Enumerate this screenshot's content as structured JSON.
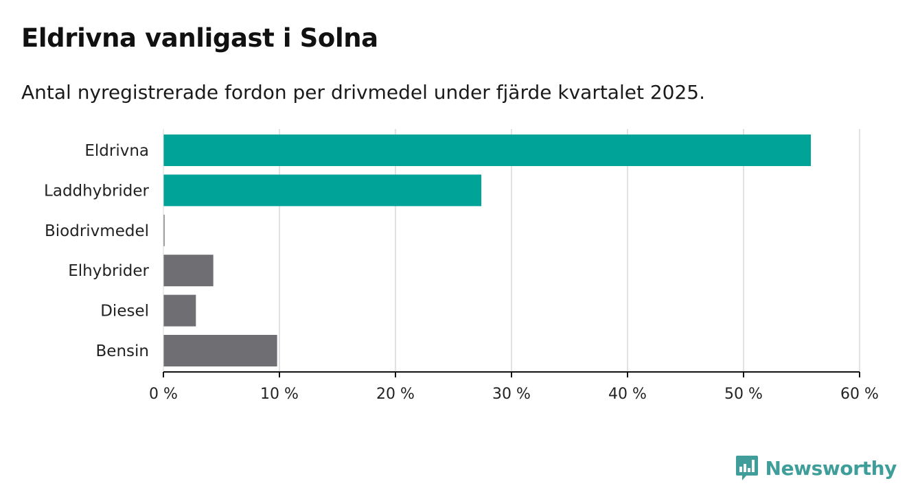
{
  "title": "Eldrivna vanligast i Solna",
  "subtitle": "Antal nyregistrerade fordon per drivmedel under fjärde kvartalet 2025.",
  "brand": {
    "name": "Newsworthy",
    "color": "#3f9e99"
  },
  "colors": {
    "highlight": "#00a398",
    "neutral": "#6f6e73",
    "grid": "#d9d9d9",
    "axis": "#111111"
  },
  "chart_data": {
    "type": "bar",
    "orientation": "horizontal",
    "title": "Eldrivna vanligast i Solna",
    "subtitle": "Antal nyregistrerade fordon per drivmedel under fjärde kvartalet 2025.",
    "xlabel": "",
    "ylabel": "",
    "xlim": [
      0,
      60
    ],
    "ticks": [
      0,
      10,
      20,
      30,
      40,
      50,
      60
    ],
    "tick_labels": [
      "0 %",
      "10 %",
      "20 %",
      "30 %",
      "40 %",
      "50 %",
      "60 %"
    ],
    "grid": true,
    "categories": [
      "Eldrivna",
      "Laddhybrider",
      "Biodrivmedel",
      "Elhybrider",
      "Diesel",
      "Bensin"
    ],
    "values": [
      55.8,
      27.4,
      0.1,
      4.3,
      2.8,
      9.8
    ],
    "highlighted": [
      true,
      true,
      false,
      false,
      false,
      false
    ]
  }
}
